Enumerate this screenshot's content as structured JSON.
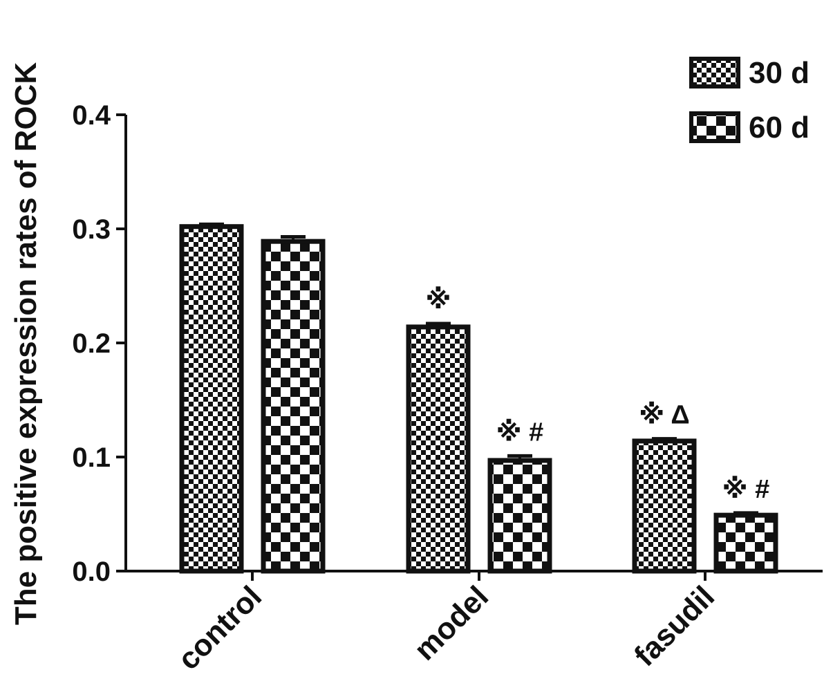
{
  "chart_data": {
    "type": "bar",
    "title": "",
    "xlabel": "",
    "ylabel": "The positive expression rates of ROCK",
    "categories": [
      "control",
      "model",
      "fasudil"
    ],
    "ylim": [
      0,
      0.4
    ],
    "yticks": [
      "0.0",
      "0.1",
      "0.2",
      "0.3",
      "0.4"
    ],
    "grid": false,
    "legend_position": "top-right",
    "series": [
      {
        "name": "30 d",
        "values": [
          0.302,
          0.214,
          0.114
        ],
        "errors": [
          0.002,
          0.003,
          0.002
        ],
        "pattern": "fine-checker"
      },
      {
        "name": "60 d",
        "values": [
          0.289,
          0.097,
          0.049
        ],
        "errors": [
          0.004,
          0.004,
          0.002
        ],
        "pattern": "coarse-checker"
      }
    ],
    "annotations": [
      {
        "category": "model",
        "series": "30 d",
        "text": "※"
      },
      {
        "category": "model",
        "series": "60 d",
        "text": "※ #"
      },
      {
        "category": "fasudil",
        "series": "30 d",
        "text": "※ Δ"
      },
      {
        "category": "fasudil",
        "series": "60 d",
        "text": "※ #"
      }
    ],
    "colors": {
      "ink": "#111111",
      "background": "#ffffff"
    }
  }
}
